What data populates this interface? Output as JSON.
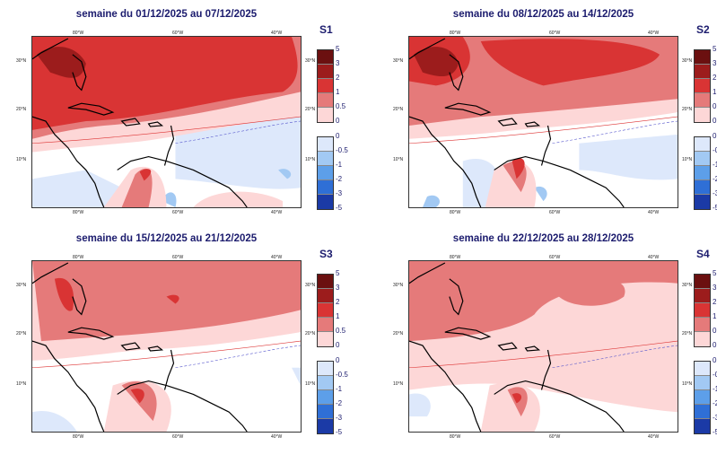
{
  "panels": [
    {
      "id": "S1",
      "title": "semaine du 01/12/2025 au 07/12/2025"
    },
    {
      "id": "S2",
      "title": "semaine du 08/12/2025 au 14/12/2025"
    },
    {
      "id": "S3",
      "title": "semaine du 15/12/2025 au 21/12/2025"
    },
    {
      "id": "S4",
      "title": "semaine du 22/12/2025 au 28/12/2025"
    }
  ],
  "lon_ticks": [
    "80°W",
    "60°W",
    "40°W"
  ],
  "lat_ticks": [
    "30°N",
    "20°N",
    "10°N"
  ],
  "colorbar": {
    "positive": {
      "labels": [
        "5",
        "3",
        "2",
        "1",
        "0.5",
        "0"
      ],
      "colors": [
        "#6b1010",
        "#9c1c1c",
        "#d93434",
        "#e57a7a",
        "#fdd7d7"
      ]
    },
    "negative": {
      "labels": [
        "0",
        "-0.5",
        "-1",
        "-2",
        "-3",
        "-5"
      ],
      "colors": [
        "#dde8fb",
        "#a2c9f3",
        "#5d9fe9",
        "#2f6fd6",
        "#1b3aa6"
      ]
    }
  }
}
